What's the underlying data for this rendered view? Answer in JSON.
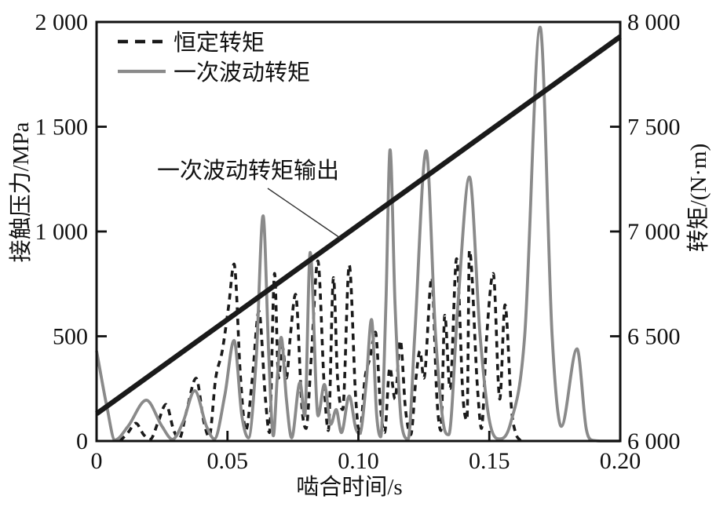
{
  "chart_data": {
    "type": "line",
    "xlabel": "啮合时间/s",
    "ylabel_left": "接触压力/MPa",
    "ylabel_right": "转矩/(N·m)",
    "x_range": [
      0,
      0.2
    ],
    "y_left_range": [
      0,
      2000
    ],
    "y_right_range": [
      6000,
      8000
    ],
    "grid": "off",
    "legend_position": "top-left-inside",
    "x_ticks": [
      {
        "v": 0,
        "label": "0"
      },
      {
        "v": 0.05,
        "label": "0.05"
      },
      {
        "v": 0.1,
        "label": "0.10"
      },
      {
        "v": 0.15,
        "label": "0.15"
      },
      {
        "v": 0.2,
        "label": "0.20"
      }
    ],
    "y_left_ticks": [
      {
        "v": 0,
        "label": "0"
      },
      {
        "v": 500,
        "label": "500"
      },
      {
        "v": 1000,
        "label": "1 000"
      },
      {
        "v": 1500,
        "label": "1 500"
      },
      {
        "v": 2000,
        "label": "2 000"
      }
    ],
    "y_right_ticks": [
      {
        "v": 6000,
        "label": "6 000"
      },
      {
        "v": 6500,
        "label": "6 500"
      },
      {
        "v": 7000,
        "label": "7 000"
      },
      {
        "v": 7500,
        "label": "7 500"
      },
      {
        "v": 8000,
        "label": "8 000"
      }
    ],
    "legend": [
      {
        "label": "恒定转矩",
        "style": "dashed",
        "color": "#1a1a1a"
      },
      {
        "label": "一次波动转矩",
        "style": "solid",
        "color": "#8a8a8a"
      }
    ],
    "annotation": {
      "text": "一次波动转矩输出",
      "points_to": "一次波动转矩输出 line"
    },
    "series": [
      {
        "name": "恒定转矩",
        "axis": "left",
        "style": "dashed",
        "color": "#1a1a1a",
        "width": 3.6,
        "points": [
          [
            0.009,
            0
          ],
          [
            0.012,
            40
          ],
          [
            0.015,
            85
          ],
          [
            0.018,
            30
          ],
          [
            0.0205,
            8
          ],
          [
            0.0235,
            90
          ],
          [
            0.0265,
            175
          ],
          [
            0.0295,
            50
          ],
          [
            0.0315,
            10
          ],
          [
            0.0345,
            150
          ],
          [
            0.038,
            300
          ],
          [
            0.041,
            90
          ],
          [
            0.043,
            20
          ],
          [
            0.0455,
            300
          ],
          [
            0.048,
            430
          ],
          [
            0.0505,
            650
          ],
          [
            0.0525,
            845
          ],
          [
            0.055,
            300
          ],
          [
            0.057,
            50
          ],
          [
            0.0595,
            300
          ],
          [
            0.062,
            620
          ],
          [
            0.0645,
            200
          ],
          [
            0.066,
            40
          ],
          [
            0.068,
            800
          ],
          [
            0.0695,
            300
          ],
          [
            0.071,
            450
          ],
          [
            0.0725,
            300
          ],
          [
            0.074,
            500
          ],
          [
            0.076,
            700
          ],
          [
            0.0785,
            150
          ],
          [
            0.08,
            60
          ],
          [
            0.082,
            400
          ],
          [
            0.0845,
            860
          ],
          [
            0.087,
            250
          ],
          [
            0.0885,
            50
          ],
          [
            0.0905,
            780
          ],
          [
            0.092,
            310
          ],
          [
            0.094,
            150
          ],
          [
            0.0965,
            840
          ],
          [
            0.099,
            200
          ],
          [
            0.1005,
            30
          ],
          [
            0.1025,
            300
          ],
          [
            0.1045,
            400
          ],
          [
            0.1065,
            520
          ],
          [
            0.1085,
            150
          ],
          [
            0.11,
            40
          ],
          [
            0.112,
            350
          ],
          [
            0.114,
            200
          ],
          [
            0.116,
            480
          ],
          [
            0.118,
            150
          ],
          [
            0.12,
            30
          ],
          [
            0.122,
            300
          ],
          [
            0.1235,
            430
          ],
          [
            0.125,
            300
          ],
          [
            0.128,
            780
          ],
          [
            0.13,
            200
          ],
          [
            0.1315,
            50
          ],
          [
            0.133,
            600
          ],
          [
            0.135,
            250
          ],
          [
            0.1375,
            870
          ],
          [
            0.14,
            200
          ],
          [
            0.1415,
            100
          ],
          [
            0.1424,
            910
          ],
          [
            0.1455,
            250
          ],
          [
            0.147,
            60
          ],
          [
            0.149,
            500
          ],
          [
            0.1515,
            800
          ],
          [
            0.154,
            200
          ],
          [
            0.156,
            650
          ],
          [
            0.1585,
            150
          ],
          [
            0.16,
            40
          ],
          [
            0.162,
            0
          ]
        ]
      },
      {
        "name": "一次波动转矩",
        "axis": "left",
        "style": "solid",
        "color": "#8a8a8a",
        "width": 3.8,
        "points": [
          [
            0,
            430
          ],
          [
            0.004,
            160
          ],
          [
            0.007,
            5
          ],
          [
            0.012,
            70
          ],
          [
            0.019,
            195
          ],
          [
            0.025,
            70
          ],
          [
            0.029,
            8
          ],
          [
            0.033,
            90
          ],
          [
            0.0375,
            240
          ],
          [
            0.042,
            70
          ],
          [
            0.045,
            10
          ],
          [
            0.049,
            220
          ],
          [
            0.0525,
            480
          ],
          [
            0.0555,
            120
          ],
          [
            0.058,
            15
          ],
          [
            0.061,
            400
          ],
          [
            0.0636,
            1075
          ],
          [
            0.0658,
            400
          ],
          [
            0.0675,
            25
          ],
          [
            0.069,
            300
          ],
          [
            0.0705,
            495
          ],
          [
            0.0725,
            200
          ],
          [
            0.0745,
            15
          ],
          [
            0.0777,
            280
          ],
          [
            0.0795,
            120
          ],
          [
            0.0816,
            900
          ],
          [
            0.0846,
            120
          ],
          [
            0.087,
            270
          ],
          [
            0.0895,
            80
          ],
          [
            0.0915,
            150
          ],
          [
            0.0935,
            40
          ],
          [
            0.0965,
            215
          ],
          [
            0.099,
            60
          ],
          [
            0.1005,
            35
          ],
          [
            0.103,
            280
          ],
          [
            0.105,
            580
          ],
          [
            0.107,
            120
          ],
          [
            0.1085,
            20
          ],
          [
            0.1105,
            650
          ],
          [
            0.1121,
            1390
          ],
          [
            0.114,
            650
          ],
          [
            0.1165,
            80
          ],
          [
            0.119,
            10
          ],
          [
            0.1215,
            500
          ],
          [
            0.1259,
            1385
          ],
          [
            0.1295,
            500
          ],
          [
            0.133,
            50
          ],
          [
            0.1345,
            30
          ],
          [
            0.138,
            650
          ],
          [
            0.1424,
            1260
          ],
          [
            0.1465,
            500
          ],
          [
            0.15,
            100
          ],
          [
            0.154,
            10
          ],
          [
            0.158,
            80
          ],
          [
            0.1635,
            500
          ],
          [
            0.1694,
            1975
          ],
          [
            0.174,
            500
          ],
          [
            0.1775,
            70
          ],
          [
            0.1835,
            440
          ],
          [
            0.187,
            60
          ],
          [
            0.189,
            5
          ],
          [
            0.193,
            0
          ],
          [
            0.2,
            0
          ]
        ]
      },
      {
        "name": "一次波动转矩输出",
        "axis": "right",
        "style": "solid",
        "color": "#1a1a1a",
        "width": 6.5,
        "points": [
          [
            0,
            6130
          ],
          [
            0.2,
            7930
          ]
        ]
      }
    ]
  }
}
